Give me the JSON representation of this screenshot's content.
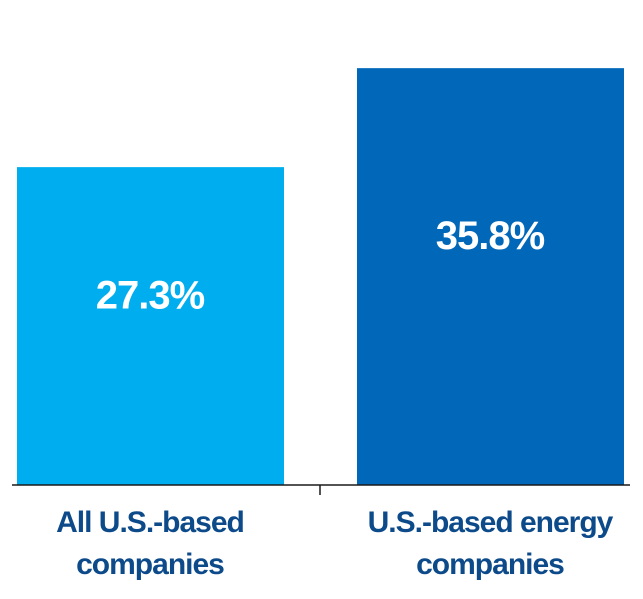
{
  "chart_data": {
    "type": "bar",
    "categories": [
      [
        "All U.S.-based",
        "companies"
      ],
      [
        "U.S.-based energy",
        "companies"
      ]
    ],
    "values": [
      27.3,
      35.8
    ],
    "value_labels": [
      "27.3%",
      "35.8%"
    ],
    "colors": [
      "#00aeef",
      "#0067b9"
    ],
    "ylim": [
      0,
      36.5
    ],
    "grid": false,
    "legend": "none"
  }
}
